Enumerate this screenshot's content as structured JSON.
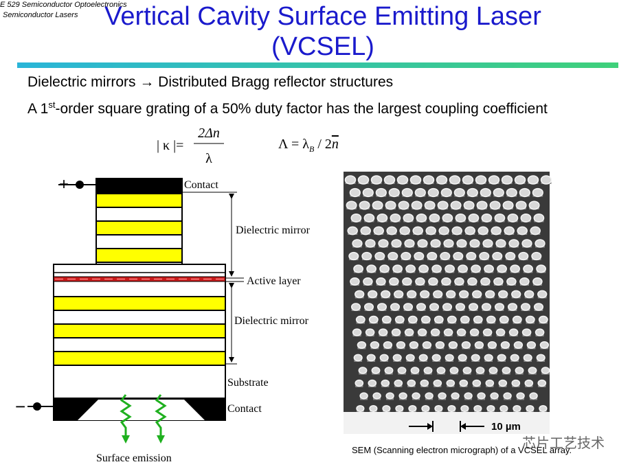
{
  "header": {
    "course": "E 529 Semiconductor Optoelectronics",
    "topic": "Semiconductor Lasers"
  },
  "title": "Vertical Cavity Surface Emitting Laser (VCSEL)",
  "bullets": [
    "Dielectric mirrors → Distributed Bragg reflector structures",
    {
      "before": "A 1",
      "sup": "st",
      "after": "-order square grating of a 50% duty factor has the largest coupling coefficient"
    }
  ],
  "equations": [
    {
      "lhs": "| κ |=",
      "numerator": "2Δn",
      "denominator": "λ"
    },
    {
      "lhs": "Λ = λ",
      "sub": "B",
      "rest": " / 2",
      "overbar": "n"
    }
  ],
  "diagram": {
    "plus": "+",
    "minus": "−",
    "top_contact": "Contact",
    "top_mirror": "Dielectric mirror",
    "active": "Active layer",
    "bottom_mirror": "Dielectric mirror",
    "substrate": "Substrate",
    "bottom_contact": "Contact",
    "emission": "Surface emission"
  },
  "sem": {
    "scale": "10 µm",
    "caption": "SEM (Scanning electron micrograph) of a VCSEL array."
  },
  "watermark": "芯片工艺技术"
}
